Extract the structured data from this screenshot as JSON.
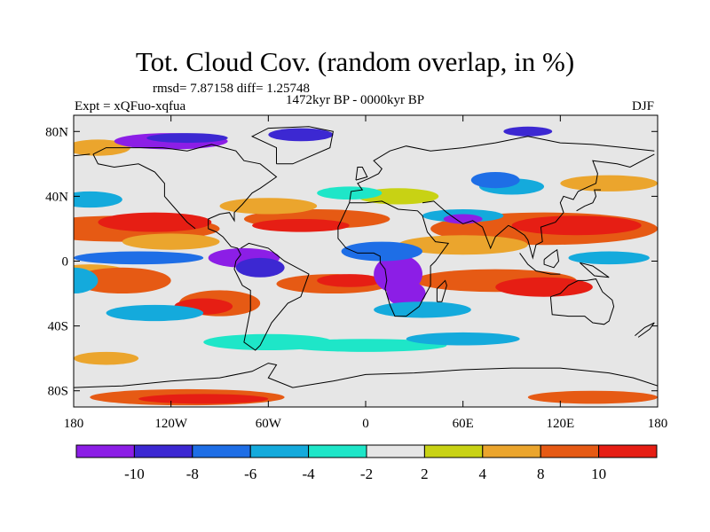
{
  "title": "Tot. Cloud Cov. (random overlap, in %)",
  "stats": "rmsd= 7.87158 diff= 1.25748",
  "experiment": "Expt = xQFuo-xqfua",
  "period": "1472kyr BP - 0000kyr BP",
  "season": "DJF",
  "map": {
    "projection": "cylindrical equidistant",
    "lon_range": [
      -180,
      180
    ],
    "lat_range": [
      -90,
      90
    ],
    "lon_ticks": [
      {
        "value": -180,
        "label": "180"
      },
      {
        "value": -120,
        "label": "120W"
      },
      {
        "value": -60,
        "label": "60W"
      },
      {
        "value": 0,
        "label": "0"
      },
      {
        "value": 60,
        "label": "60E"
      },
      {
        "value": 120,
        "label": "120E"
      },
      {
        "value": 180,
        "label": "180"
      }
    ],
    "lat_ticks": [
      {
        "value": 80,
        "label": "80N"
      },
      {
        "value": 40,
        "label": "40N"
      },
      {
        "value": 0,
        "label": "0"
      },
      {
        "value": -40,
        "label": "40S"
      },
      {
        "value": -80,
        "label": "80S"
      }
    ],
    "field": "difference in total cloud cover (%)"
  },
  "colorbar": {
    "levels": [
      -10,
      -8,
      -6,
      -4,
      -2,
      2,
      4,
      8,
      10
    ],
    "labels": [
      "-10",
      "-8",
      "-6",
      "-4",
      "-2",
      "2",
      "4",
      "8",
      "10"
    ],
    "colors": [
      "#8c1ee6",
      "#3c28d2",
      "#1e6ee6",
      "#14aadc",
      "#1ee6c8",
      "#e6e6e6",
      "#c8d214",
      "#eba52d",
      "#e65a14",
      "#e61e14"
    ]
  }
}
